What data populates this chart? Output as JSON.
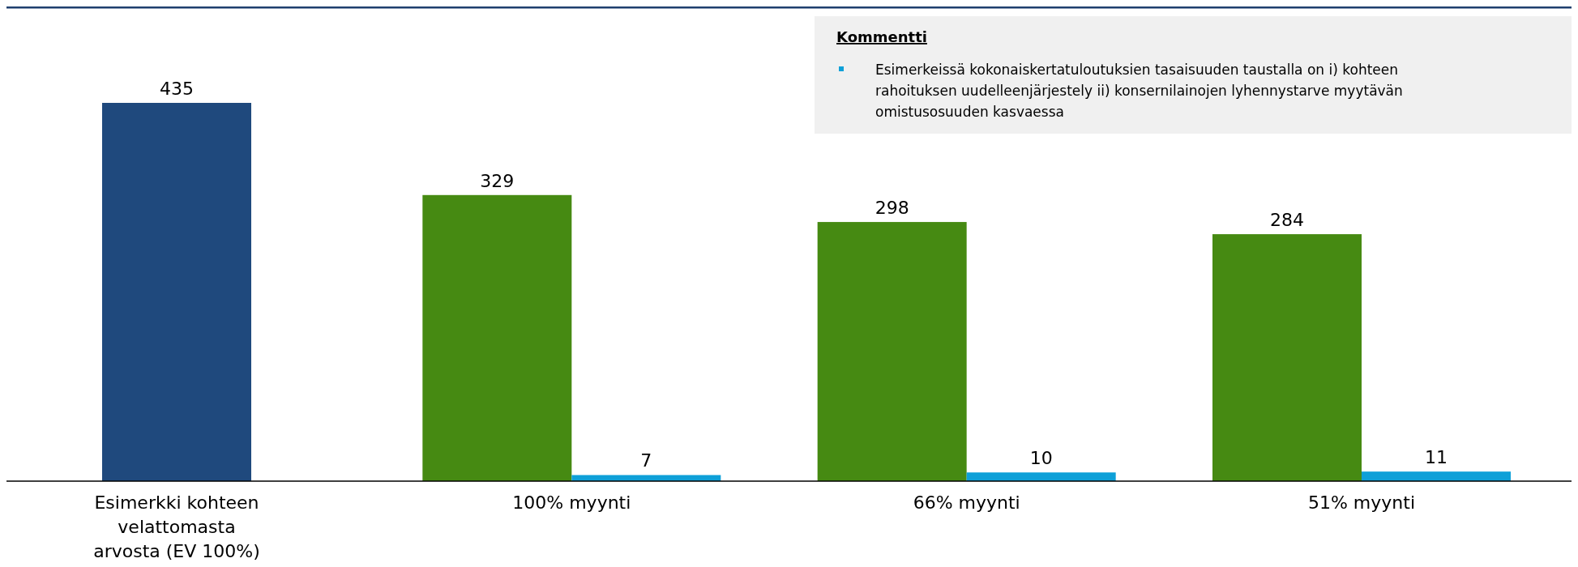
{
  "chart_data": {
    "type": "bar",
    "categories": [
      "Esimerkki kohteen velattomasta arvosta (EV 100%)",
      "100% myynti",
      "66% myynti",
      "51% myynti"
    ],
    "series": [
      {
        "colors": [
          "#1f497d",
          "#468a12",
          "#468a12",
          "#468a12"
        ],
        "values": [
          435,
          329,
          298,
          284
        ]
      },
      {
        "color": "#0ea0d8",
        "values": [
          null,
          7,
          10,
          11
        ]
      }
    ],
    "data_labels": true,
    "tick_labels": "x",
    "annotations": [
      "Kommentti",
      "Esimerkeissä kokonaiskertatuloutuksien tasaisuuden taustalla on i) kohteen rahoituksen uudelleenjärjestely ii) konsernilainojen lyhennystarve myytävän omistusosuuden kasvaessa"
    ]
  }
}
